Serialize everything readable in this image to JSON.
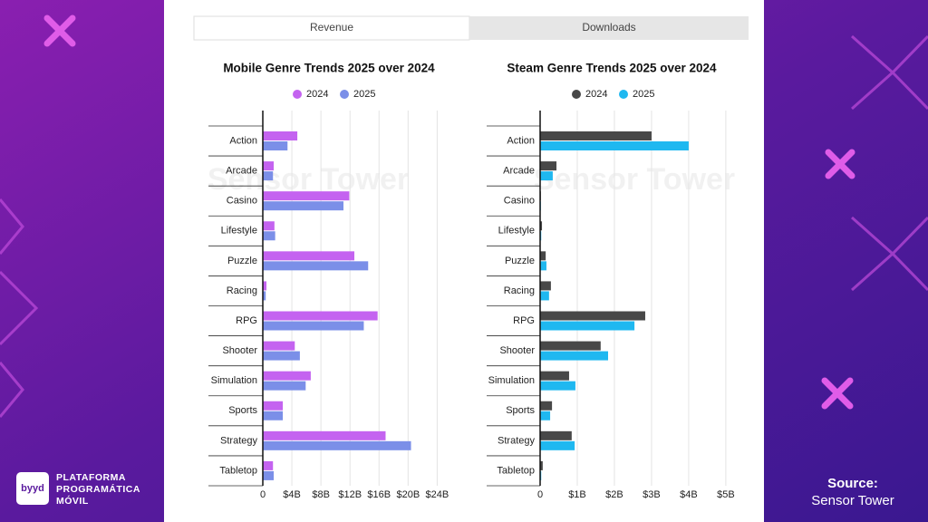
{
  "tabs": [
    "Revenue",
    "Downloads"
  ],
  "watermark": "Sensor Tower",
  "brand": {
    "logo": "byyd",
    "lines": [
      "PLATAFORMA",
      "PROGRAMÁTICA",
      "MÓVIL"
    ]
  },
  "source": {
    "label": "Source:",
    "name": "Sensor Tower"
  },
  "chart_data": [
    {
      "type": "bar",
      "orientation": "horizontal",
      "title": "Mobile Genre Trends 2025 over 2024",
      "categories": [
        "Action",
        "Arcade",
        "Casino",
        "Lifestyle",
        "Puzzle",
        "Racing",
        "RPG",
        "Shooter",
        "Simulation",
        "Sports",
        "Strategy",
        "Tabletop"
      ],
      "series": [
        {
          "name": "2024",
          "color": "#c463f0",
          "values": [
            4.75,
            1.5,
            11.9,
            1.6,
            12.6,
            0.5,
            15.8,
            4.4,
            6.6,
            2.75,
            16.9,
            1.4
          ]
        },
        {
          "name": "2025",
          "color": "#7b8fe8",
          "values": [
            3.4,
            1.4,
            11.1,
            1.7,
            14.5,
            0.4,
            13.9,
            5.1,
            5.9,
            2.75,
            20.4,
            1.5
          ]
        }
      ],
      "xlim": [
        0,
        24.2
      ],
      "xticks": [
        0,
        {
          "value": 4,
          "label": "$4B"
        },
        {
          "value": 8,
          "label": "$8B"
        },
        {
          "value": 12,
          "label": "$12B"
        },
        {
          "value": 16,
          "label": "$16B"
        },
        {
          "value": 20,
          "label": "$20B"
        },
        {
          "value": 24,
          "label": "$24B"
        }
      ],
      "grid": true
    },
    {
      "type": "bar",
      "orientation": "horizontal",
      "title": "Steam Genre Trends 2025 over 2024",
      "categories": [
        "Action",
        "Arcade",
        "Casino",
        "Lifestyle",
        "Puzzle",
        "Racing",
        "RPG",
        "Shooter",
        "Simulation",
        "Sports",
        "Strategy",
        "Tabletop"
      ],
      "series": [
        {
          "name": "2024",
          "color": "#484848",
          "values": [
            3.0,
            0.44,
            0.02,
            0.05,
            0.15,
            0.29,
            2.83,
            1.63,
            0.78,
            0.32,
            0.85,
            0.07
          ]
        },
        {
          "name": "2025",
          "color": "#1fb8f0",
          "values": [
            4.0,
            0.34,
            0.02,
            0.03,
            0.17,
            0.24,
            2.54,
            1.83,
            0.95,
            0.27,
            0.93,
            0.03
          ]
        }
      ],
      "xlim": [
        0,
        5.1
      ],
      "xticks": [
        0,
        {
          "value": 1,
          "label": "$1B"
        },
        {
          "value": 2,
          "label": "$2B"
        },
        {
          "value": 3,
          "label": "$3B"
        },
        {
          "value": 4,
          "label": "$4B"
        },
        {
          "value": 5,
          "label": "$5B"
        }
      ],
      "grid": true
    }
  ]
}
